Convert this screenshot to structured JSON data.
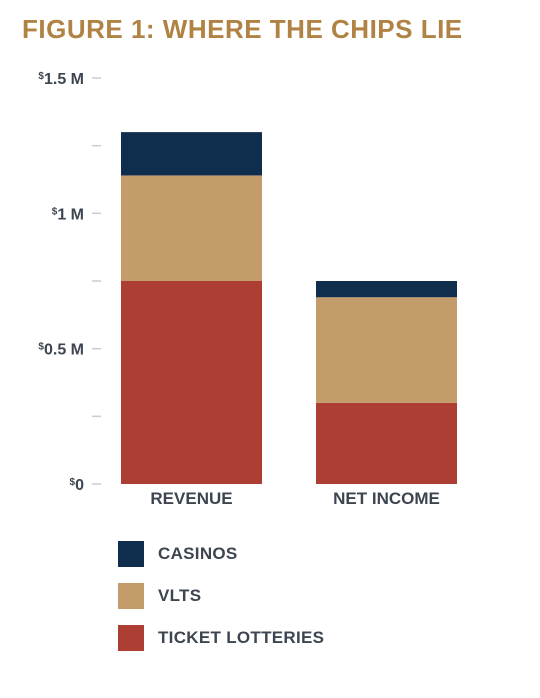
{
  "title": "FIGURE 1: WHERE THE CHIPS LIE",
  "colors": {
    "title": "#b08243",
    "text": "#3d4650",
    "tick": "#c9cdd1",
    "casinos": "#0f2d4c",
    "vlts": "#c49c6c",
    "ticket_lotteries": "#ad3e33"
  },
  "chart_data": {
    "type": "bar",
    "stacked": true,
    "title": "FIGURE 1: WHERE THE CHIPS LIE",
    "categories": [
      "REVENUE",
      "NET INCOME"
    ],
    "series": [
      {
        "name": "TICKET LOTTERIES",
        "values": [
          0.75,
          0.3
        ],
        "color": "#ad3e33"
      },
      {
        "name": "VLTS",
        "values": [
          0.39,
          0.39
        ],
        "color": "#c49c6c"
      },
      {
        "name": "CASINOS",
        "values": [
          0.16,
          0.06
        ],
        "color": "#0f2d4c"
      }
    ],
    "ylim": [
      0,
      1.5
    ],
    "y_ticks": [
      {
        "value": 0,
        "label": "$0"
      },
      {
        "value": 0.5,
        "label": "$0.5 M"
      },
      {
        "value": 1,
        "label": "$1 M"
      },
      {
        "value": 1.5,
        "label": "$1.5 M"
      }
    ],
    "y_minor_ticks": [
      0.25,
      0.75,
      1.25
    ],
    "grid": false,
    "legend_position": "bottom-left"
  },
  "legend": [
    {
      "label": "CASINOS",
      "color": "#0f2d4c"
    },
    {
      "label": "VLTS",
      "color": "#c49c6c"
    },
    {
      "label": "TICKET LOTTERIES",
      "color": "#ad3e33"
    }
  ]
}
